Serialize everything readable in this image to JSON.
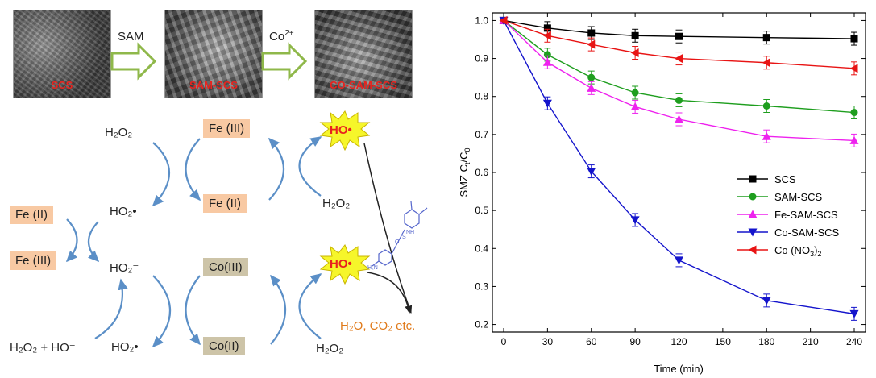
{
  "diagram": {
    "sem_images": [
      {
        "label": "SCS"
      },
      {
        "label": "SAM-SCS"
      },
      {
        "label": "CO-SAM-SCS"
      }
    ],
    "arrow_labels": {
      "sam": "SAM",
      "co_sup": "Co",
      "co_charge": "2+"
    },
    "species": {
      "h2o2_top_left": "H₂O₂",
      "ho2_radical_1": "HO₂•",
      "ho2_anion": "HO₂⁻",
      "h2o2_plus_ho": "H₂O₂ + HO⁻",
      "ho2_radical_2": "HO₂•",
      "h2o2_right_1": "H₂O₂",
      "h2o2_right_2": "H₂O₂",
      "fe3_top": "Fe (III)",
      "fe2_mid": "Fe (II)",
      "fe2_left": "Fe (II)",
      "fe3_left": "Fe (III)",
      "co3": "Co(III)",
      "co2": "Co(II)",
      "ho_radical_1": "HO•",
      "ho_radical_2": "HO•",
      "products": "H₂O, CO₂ etc."
    },
    "colors": {
      "fe_box": "#f8c9a3",
      "co_box": "#cdc4a8",
      "arrow_blue": "#5b8fc7",
      "arrow_green": "#8fb84a",
      "star": "#f6f62a",
      "ho_text": "#e8231e",
      "product": "#e07a1a"
    }
  },
  "chart_data": {
    "type": "line",
    "xlabel": "Time (min)",
    "ylabel_main": "SMZ C",
    "ylabel_sub_t": "t",
    "ylabel_slash": "/C",
    "ylabel_sub_0": "0",
    "xlim": [
      0,
      240
    ],
    "ylim": [
      0.2,
      1.0
    ],
    "xticks": [
      "0",
      "30",
      "60",
      "90",
      "120",
      "150",
      "180",
      "210",
      "240"
    ],
    "yticks": [
      "0.2",
      "0.3",
      "0.4",
      "0.5",
      "0.6",
      "0.7",
      "0.8",
      "0.9",
      "1.0"
    ],
    "x": [
      0,
      30,
      60,
      90,
      120,
      180,
      240
    ],
    "legend_position": "middle-right",
    "series": [
      {
        "name": "SCS",
        "color": "#000000",
        "marker": "square",
        "values": [
          1.0,
          0.98,
          0.967,
          0.96,
          0.958,
          0.955,
          0.952
        ]
      },
      {
        "name": "SAM-SCS",
        "color": "#1e9e1e",
        "marker": "circle",
        "values": [
          1.0,
          0.91,
          0.85,
          0.81,
          0.79,
          0.775,
          0.758
        ]
      },
      {
        "name": "Fe-SAM-SCS",
        "color": "#ee22ee",
        "marker": "triangle-up",
        "values": [
          1.0,
          0.89,
          0.822,
          0.773,
          0.74,
          0.695,
          0.684
        ]
      },
      {
        "name": "Co-SAM-SCS",
        "color": "#1414cc",
        "marker": "triangle-down",
        "values": [
          1.0,
          0.782,
          0.603,
          0.475,
          0.369,
          0.263,
          0.228
        ]
      },
      {
        "name_main": "Co (NO",
        "name_sub": "3",
        "name_close": ")",
        "name_sub2": "2",
        "color": "#e81414",
        "marker": "triangle-left",
        "values": [
          1.0,
          0.96,
          0.937,
          0.915,
          0.9,
          0.889,
          0.874
        ]
      }
    ]
  }
}
